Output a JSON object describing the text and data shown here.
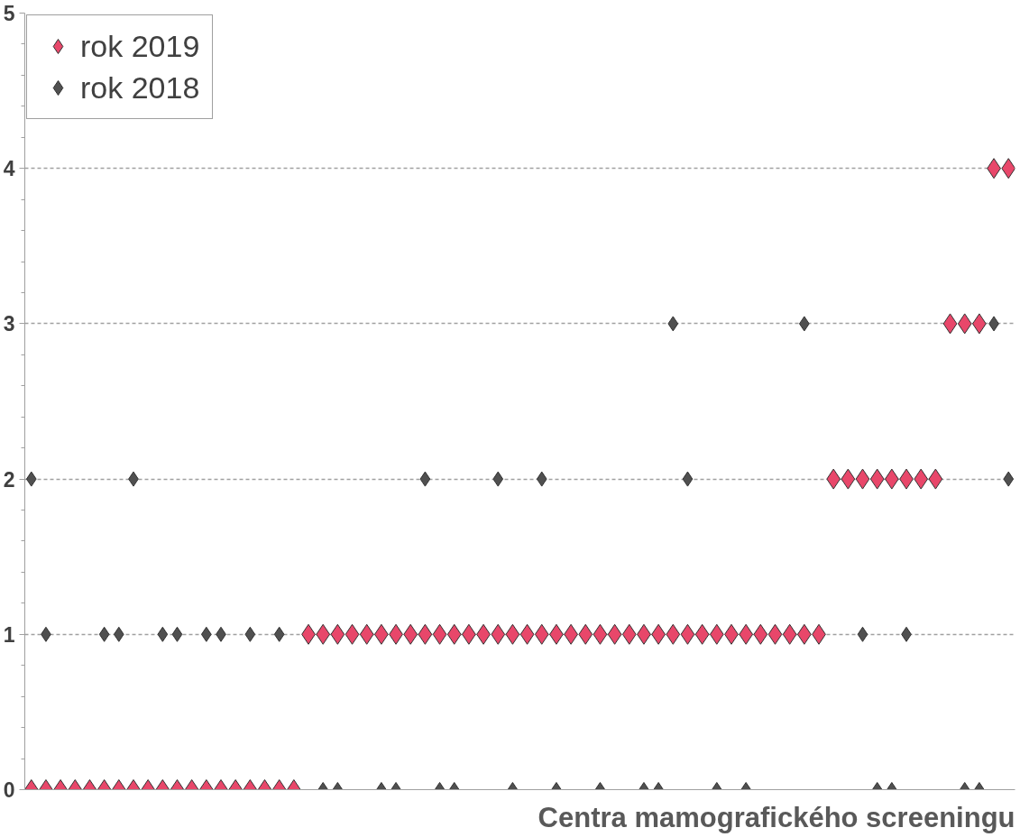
{
  "chart_data": {
    "type": "scatter",
    "xlabel": "Centra mamografického screeningu",
    "categories": [
      null,
      null,
      null,
      null,
      null,
      null,
      null,
      null,
      null,
      null,
      null,
      null,
      null,
      null,
      null,
      null,
      null,
      null,
      null,
      null,
      null,
      null,
      null,
      null,
      null,
      null,
      null,
      null,
      null,
      null,
      null,
      null,
      null,
      null,
      null,
      null,
      null,
      null,
      null,
      null,
      null,
      null,
      null,
      null,
      null,
      null,
      null,
      null,
      null,
      null,
      null,
      null,
      null,
      null,
      null,
      null,
      null,
      null,
      null,
      null,
      null,
      null,
      null,
      null,
      null,
      null,
      null,
      null
    ],
    "series": [
      {
        "name": "rok 2019",
        "color": "#e8476a",
        "values": [
          0,
          0,
          0,
          0,
          0,
          0,
          0,
          0,
          0,
          0,
          0,
          0,
          0,
          0,
          0,
          0,
          0,
          0,
          0,
          1,
          1,
          1,
          1,
          1,
          1,
          1,
          1,
          1,
          1,
          1,
          1,
          1,
          1,
          1,
          1,
          1,
          1,
          1,
          1,
          1,
          1,
          1,
          1,
          1,
          1,
          1,
          1,
          1,
          1,
          1,
          1,
          1,
          1,
          1,
          1,
          2,
          2,
          2,
          2,
          2,
          2,
          2,
          2,
          3,
          3,
          3,
          4,
          4
        ]
      },
      {
        "name": "rok 2018",
        "color": "#505050",
        "values": [
          2,
          1,
          null,
          null,
          null,
          1,
          1,
          2,
          null,
          1,
          1,
          null,
          1,
          1,
          null,
          1,
          null,
          1,
          null,
          null,
          0,
          0,
          null,
          null,
          0,
          0,
          null,
          2,
          0,
          0,
          null,
          null,
          2,
          0,
          null,
          2,
          0,
          null,
          null,
          0,
          null,
          null,
          0,
          0,
          3,
          2,
          null,
          0,
          null,
          0,
          null,
          null,
          null,
          3,
          null,
          null,
          null,
          1,
          0,
          0,
          1,
          null,
          null,
          null,
          0,
          0,
          3,
          2
        ]
      }
    ],
    "ylim": [
      0,
      5
    ],
    "yticks": [
      0,
      1,
      2,
      3,
      4,
      5
    ],
    "grid": "y",
    "legend": "top left",
    "marker": "diamond",
    "tick_labels": "y"
  }
}
